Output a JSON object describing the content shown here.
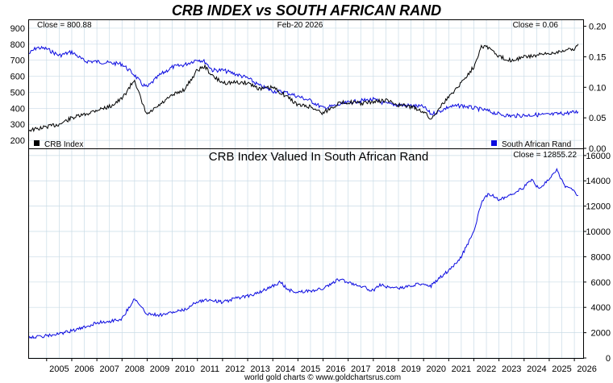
{
  "title": "CRB INDEX vs SOUTH AFRICAN RAND",
  "footer": "world gold charts © www.goldchartsrus.com",
  "colors": {
    "title": "#1a1adb",
    "crb": "#000000",
    "zar": "#0a0ae0",
    "grid": "#c9dbe6",
    "frame": "#000000"
  },
  "chart_data": [
    {
      "type": "line",
      "panel": "top",
      "date_label": "Feb-20  2026",
      "close_left": "Close = 800.88",
      "close_right": "Close = 0.06",
      "left_axis": {
        "ticks": [
          "200",
          "300",
          "400",
          "500",
          "600",
          "700",
          "800",
          "900"
        ],
        "ylim": [
          150,
          950
        ]
      },
      "right_axis": {
        "ticks": [
          "0.00",
          "0.05",
          "0.10",
          "0.15",
          "0.20"
        ],
        "ylim": [
          0.0,
          0.21
        ]
      },
      "legend": [
        {
          "label": "CRB Index",
          "color": "#000000",
          "position": "bottom-left"
        },
        {
          "label": "South African Rand",
          "color": "#0a0ae0",
          "position": "bottom-right"
        }
      ],
      "xlim": [
        2004.3,
        2026.35
      ],
      "series": [
        {
          "name": "CRB Index",
          "axis": "left",
          "x": [
            2004.3,
            2004.6,
            2005.0,
            2005.5,
            2006.0,
            2006.5,
            2007.0,
            2007.5,
            2008.0,
            2008.5,
            2008.8,
            2009.0,
            2009.5,
            2010.0,
            2010.5,
            2011.0,
            2011.3,
            2011.6,
            2012.0,
            2012.5,
            2013.0,
            2013.5,
            2014.0,
            2014.3,
            2014.6,
            2015.0,
            2015.5,
            2016.0,
            2016.3,
            2016.6,
            2017.0,
            2017.5,
            2018.0,
            2018.5,
            2019.0,
            2019.5,
            2020.0,
            2020.3,
            2020.6,
            2021.0,
            2021.5,
            2022.0,
            2022.3,
            2022.6,
            2023.0,
            2023.5,
            2024.0,
            2024.5,
            2025.0,
            2025.5,
            2026.0,
            2026.15
          ],
          "y": [
            265,
            270,
            285,
            300,
            340,
            360,
            390,
            410,
            460,
            580,
            430,
            360,
            420,
            480,
            520,
            640,
            660,
            600,
            560,
            560,
            560,
            520,
            530,
            500,
            470,
            420,
            410,
            370,
            400,
            430,
            440,
            430,
            440,
            450,
            420,
            410,
            380,
            330,
            400,
            470,
            560,
            660,
            790,
            780,
            720,
            700,
            720,
            730,
            740,
            760,
            770,
            801
          ]
        },
        {
          "name": "South African Rand",
          "axis": "right",
          "x": [
            2004.3,
            2004.6,
            2005.0,
            2005.5,
            2006.0,
            2006.5,
            2007.0,
            2007.5,
            2008.0,
            2008.5,
            2008.8,
            2009.0,
            2009.5,
            2010.0,
            2010.5,
            2011.0,
            2011.3,
            2011.6,
            2012.0,
            2012.5,
            2013.0,
            2013.5,
            2014.0,
            2014.5,
            2015.0,
            2015.5,
            2016.0,
            2016.5,
            2017.0,
            2017.5,
            2018.0,
            2018.5,
            2019.0,
            2019.5,
            2020.0,
            2020.3,
            2020.6,
            2021.0,
            2021.5,
            2022.0,
            2022.5,
            2023.0,
            2023.5,
            2024.0,
            2024.5,
            2025.0,
            2025.5,
            2026.0,
            2026.15
          ],
          "y": [
            0.155,
            0.165,
            0.163,
            0.152,
            0.158,
            0.143,
            0.142,
            0.14,
            0.138,
            0.12,
            0.105,
            0.1,
            0.12,
            0.133,
            0.137,
            0.146,
            0.142,
            0.128,
            0.128,
            0.122,
            0.115,
            0.102,
            0.094,
            0.092,
            0.085,
            0.078,
            0.066,
            0.07,
            0.075,
            0.078,
            0.08,
            0.073,
            0.071,
            0.07,
            0.068,
            0.056,
            0.06,
            0.068,
            0.07,
            0.066,
            0.062,
            0.056,
            0.053,
            0.054,
            0.055,
            0.055,
            0.057,
            0.059,
            0.06
          ]
        }
      ]
    },
    {
      "type": "line",
      "panel": "bottom",
      "title": "CRB Index Valued In South African Rand",
      "close": "Close = 12855.22",
      "right_axis": {
        "ticks": [
          "0",
          "2000",
          "4000",
          "6000",
          "8000",
          "10000",
          "12000",
          "14000",
          "16000"
        ],
        "ylim": [
          0,
          16500
        ]
      },
      "x_ticks": [
        "2005",
        "2006",
        "2007",
        "2008",
        "2009",
        "2010",
        "2011",
        "2012",
        "2013",
        "2014",
        "2015",
        "2016",
        "2017",
        "2018",
        "2019",
        "2020",
        "2021",
        "2022",
        "2023",
        "2024",
        "2025",
        "2026"
      ],
      "xlim": [
        2004.3,
        2026.35
      ],
      "series": [
        {
          "name": "",
          "x": [
            2004.3,
            2004.6,
            2005.0,
            2005.5,
            2006.0,
            2006.5,
            2007.0,
            2007.5,
            2008.0,
            2008.3,
            2008.5,
            2008.8,
            2009.0,
            2009.5,
            2010.0,
            2010.5,
            2011.0,
            2011.5,
            2012.0,
            2012.5,
            2013.0,
            2013.5,
            2014.0,
            2014.3,
            2014.6,
            2015.0,
            2015.5,
            2016.0,
            2016.3,
            2016.6,
            2017.0,
            2017.5,
            2018.0,
            2018.3,
            2018.6,
            2019.0,
            2019.5,
            2020.0,
            2020.3,
            2020.6,
            2021.0,
            2021.5,
            2022.0,
            2022.3,
            2022.6,
            2023.0,
            2023.5,
            2024.0,
            2024.3,
            2024.6,
            2025.0,
            2025.3,
            2025.6,
            2026.0,
            2026.15
          ],
          "y": [
            1700,
            1650,
            1750,
            1900,
            2150,
            2400,
            2800,
            2900,
            3100,
            4100,
            4700,
            3900,
            3500,
            3400,
            3600,
            3800,
            4500,
            4600,
            4400,
            4700,
            4900,
            5200,
            5700,
            6000,
            5400,
            5200,
            5300,
            5500,
            5800,
            6200,
            6000,
            5700,
            5300,
            5800,
            5600,
            5500,
            5700,
            5900,
            5700,
            6300,
            6900,
            8000,
            10000,
            12300,
            13000,
            12500,
            12900,
            13500,
            14100,
            13300,
            14200,
            14900,
            13600,
            13200,
            12855
          ]
        }
      ]
    }
  ]
}
